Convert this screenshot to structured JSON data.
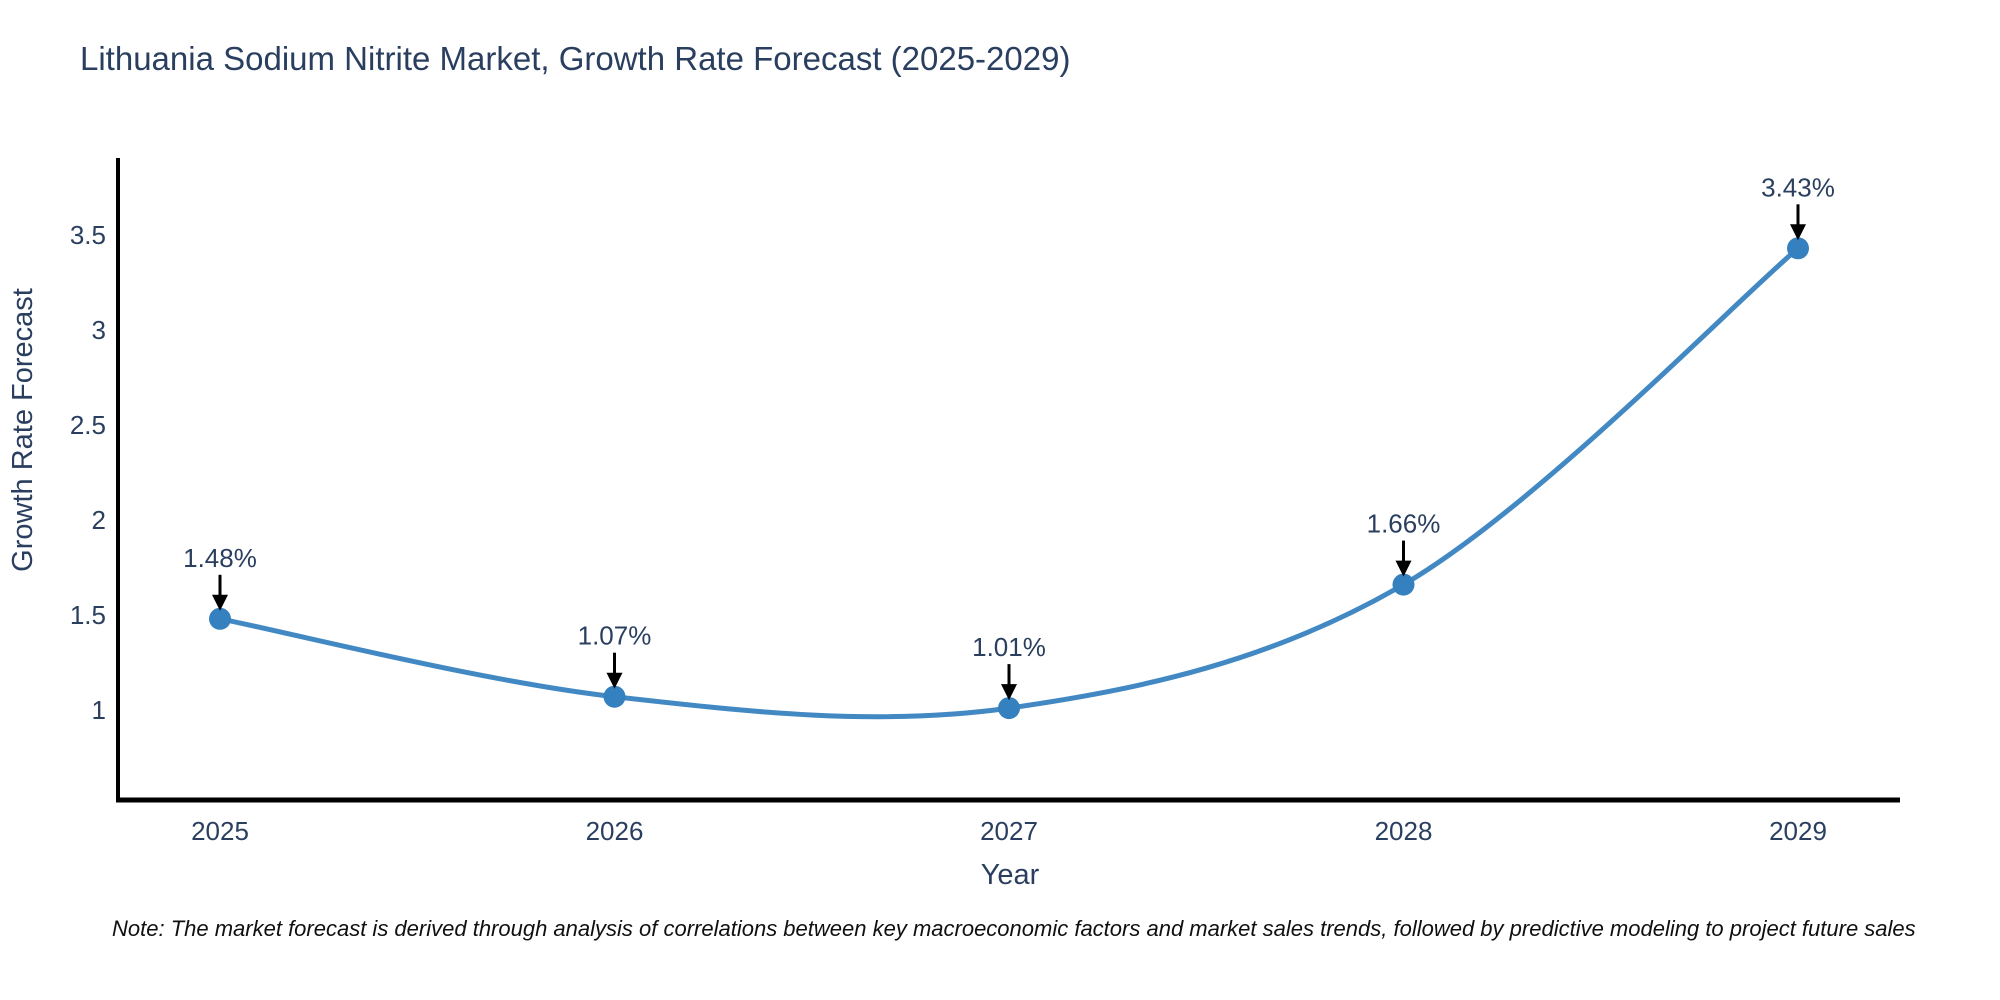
{
  "title": "Lithuania Sodium Nitrite Market, Growth Rate Forecast (2025-2029)",
  "note": "Note: The market forecast is derived through analysis of correlations between key macroeconomic factors and market sales trends, followed by predictive modeling to project future sales",
  "chart_data": {
    "type": "line",
    "title": "Lithuania Sodium Nitrite Market, Growth Rate Forecast (2025-2029)",
    "xlabel": "Year",
    "ylabel": "Growth Rate Forecast",
    "x": [
      2025,
      2026,
      2027,
      2028,
      2029
    ],
    "values": [
      1.48,
      1.07,
      1.01,
      1.66,
      3.43
    ],
    "point_labels": [
      "1.48%",
      "1.07%",
      "1.01%",
      "1.66%",
      "3.43%"
    ],
    "xticks": [
      "2025",
      "2026",
      "2027",
      "2028",
      "2029"
    ],
    "yticks": [
      1,
      1.5,
      2,
      2.5,
      3,
      3.5
    ],
    "ytick_labels": [
      "1",
      "1.5",
      "2",
      "2.5",
      "3",
      "3.5"
    ],
    "ylim": [
      0.53,
      3.9
    ],
    "line_shape": "spline",
    "grid": false,
    "legend": "none",
    "colors": {
      "line": "#4289c4",
      "marker": "#3580bf",
      "axis_line": "#000000",
      "tick_text": "#2a3f5f",
      "title_text": "#2a3f5f",
      "annotation_text": "#2a3f5f",
      "annotation_arrow": "#000000",
      "note_text": "#101010",
      "background": "#ffffff"
    }
  }
}
